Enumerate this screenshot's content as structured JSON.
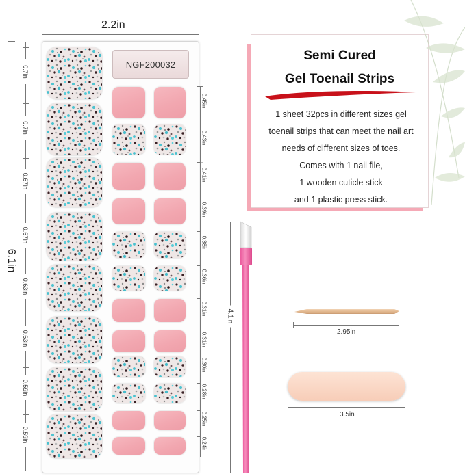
{
  "sheet": {
    "width_label": "2.2in",
    "height_label": "6.1in",
    "code": "NGF200032",
    "left_row_labels": [
      "0.7in",
      "0.7in",
      "0.67in",
      "0.67in",
      "0.63in",
      "0.63in",
      "0.59in",
      "0.59in"
    ],
    "right_row_labels": [
      "0.45in",
      "0.43in",
      "0.41in",
      "0.39in",
      "0.38in",
      "0.36in",
      "0.31in",
      "0.31in",
      "0.30in",
      "0.28in",
      "0.25in",
      "0.24in"
    ],
    "small_rows": [
      "pink",
      "glitter",
      "pink",
      "pink",
      "glitter",
      "glitter",
      "pink",
      "pink",
      "glitter",
      "glitter",
      "pink",
      "pink"
    ]
  },
  "info": {
    "title_line1": "Semi Cured",
    "title_line2": "Gel Toenail Strips",
    "body_lines": [
      "1 sheet 32pcs in different sizes gel",
      "toenail strips  that can meet the nail art",
      "needs of different sizes of toes.",
      "Comes with 1 nail file,",
      "1 wooden cuticle stick",
      "and 1 plastic press stick."
    ],
    "accent_color": "#f5a9b6"
  },
  "tools": {
    "press_stick_label": "4.1in",
    "cuticle_stick_label": "2.95in",
    "nail_file_label": "3.5in",
    "press_stick_color": "#f06fa3"
  }
}
